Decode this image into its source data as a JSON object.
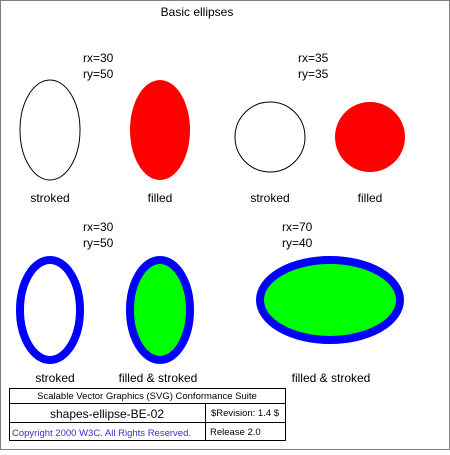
{
  "title": "Basic ellipses",
  "colors": {
    "frame": "#7f7f7f",
    "stroke": "#000000",
    "fill_red": "#ff0000",
    "stroke_blue": "#0000ff",
    "fill_green": "#00ff00",
    "copyright_text": "#3333cc"
  },
  "groups": [
    {
      "rx_label": "rx=30",
      "ry_label": "ry=50",
      "ellipses": [
        {
          "caption": "stroked"
        },
        {
          "caption": "filled"
        }
      ]
    },
    {
      "rx_label": "rx=35",
      "ry_label": "ry=35",
      "ellipses": [
        {
          "caption": "stroked"
        },
        {
          "caption": "filled"
        }
      ]
    },
    {
      "rx_label": "rx=30",
      "ry_label": "ry=50",
      "ellipses": [
        {
          "caption": "stroked"
        },
        {
          "caption": "filled & stroked"
        }
      ]
    },
    {
      "rx_label": "rx=70",
      "ry_label": "ry=40",
      "ellipses": [
        {
          "caption": "filled & stroked"
        }
      ]
    }
  ],
  "footer": {
    "suite": "Scalable Vector Graphics (SVG) Conformance Suite",
    "test_name": "shapes-ellipse-BE-02",
    "revision": "$Revision: 1.4 $",
    "copyright": "Copyright 2000 W3C. All Rights Reserved.",
    "release": "Release 2.0"
  }
}
